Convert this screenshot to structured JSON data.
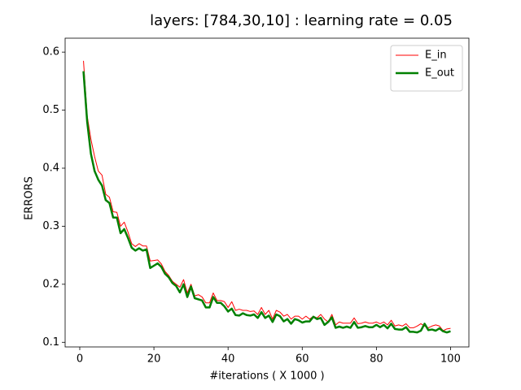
{
  "chart_data": {
    "type": "line",
    "title": "layers: [784,30,10] : learning rate = 0.05",
    "xlabel": "#iterations ( X  1000 )",
    "ylabel": "ERRORS",
    "x": [
      1,
      2,
      3,
      4,
      5,
      6,
      7,
      8,
      9,
      10,
      11,
      12,
      13,
      14,
      15,
      16,
      17,
      18,
      19,
      20,
      21,
      22,
      23,
      24,
      25,
      26,
      27,
      28,
      29,
      30,
      31,
      32,
      33,
      34,
      35,
      36,
      37,
      38,
      39,
      40,
      41,
      42,
      43,
      44,
      45,
      46,
      47,
      48,
      49,
      50,
      51,
      52,
      53,
      54,
      55,
      56,
      57,
      58,
      59,
      60,
      61,
      62,
      63,
      64,
      65,
      66,
      67,
      68,
      69,
      70,
      71,
      72,
      73,
      74,
      75,
      76,
      77,
      78,
      79,
      80,
      81,
      82,
      83,
      84,
      85,
      86,
      87,
      88,
      89,
      90,
      91,
      92,
      93,
      94,
      95,
      96,
      97,
      98,
      99,
      100
    ],
    "series": [
      {
        "name": "E_in",
        "color": "#ff0000",
        "width": 1,
        "values": [
          0.585,
          0.49,
          0.45,
          0.42,
          0.395,
          0.388,
          0.355,
          0.35,
          0.325,
          0.324,
          0.3,
          0.307,
          0.29,
          0.27,
          0.265,
          0.27,
          0.266,
          0.266,
          0.24,
          0.241,
          0.242,
          0.235,
          0.222,
          0.215,
          0.205,
          0.2,
          0.195,
          0.208,
          0.185,
          0.2,
          0.18,
          0.182,
          0.178,
          0.168,
          0.168,
          0.185,
          0.172,
          0.172,
          0.17,
          0.16,
          0.17,
          0.155,
          0.157,
          0.155,
          0.155,
          0.153,
          0.154,
          0.148,
          0.16,
          0.148,
          0.155,
          0.14,
          0.155,
          0.152,
          0.145,
          0.148,
          0.14,
          0.145,
          0.145,
          0.14,
          0.145,
          0.14,
          0.145,
          0.142,
          0.148,
          0.14,
          0.135,
          0.148,
          0.13,
          0.135,
          0.133,
          0.133,
          0.133,
          0.142,
          0.132,
          0.133,
          0.135,
          0.133,
          0.133,
          0.135,
          0.132,
          0.135,
          0.13,
          0.138,
          0.128,
          0.13,
          0.128,
          0.132,
          0.125,
          0.125,
          0.128,
          0.132,
          0.128,
          0.125,
          0.128,
          0.13,
          0.128,
          0.12,
          0.123,
          0.124
        ]
      },
      {
        "name": "E_out",
        "color": "#008000",
        "width": 2.5,
        "values": [
          0.567,
          0.48,
          0.425,
          0.395,
          0.38,
          0.37,
          0.345,
          0.34,
          0.315,
          0.315,
          0.288,
          0.295,
          0.28,
          0.263,
          0.258,
          0.262,
          0.258,
          0.26,
          0.228,
          0.232,
          0.236,
          0.23,
          0.218,
          0.212,
          0.202,
          0.197,
          0.186,
          0.2,
          0.178,
          0.196,
          0.176,
          0.174,
          0.172,
          0.16,
          0.16,
          0.178,
          0.168,
          0.168,
          0.162,
          0.153,
          0.158,
          0.147,
          0.146,
          0.15,
          0.147,
          0.146,
          0.148,
          0.142,
          0.152,
          0.142,
          0.146,
          0.135,
          0.148,
          0.145,
          0.136,
          0.14,
          0.132,
          0.14,
          0.138,
          0.134,
          0.136,
          0.136,
          0.144,
          0.14,
          0.142,
          0.13,
          0.135,
          0.143,
          0.125,
          0.127,
          0.125,
          0.127,
          0.125,
          0.135,
          0.125,
          0.126,
          0.128,
          0.126,
          0.126,
          0.13,
          0.126,
          0.13,
          0.124,
          0.132,
          0.123,
          0.122,
          0.122,
          0.126,
          0.118,
          0.118,
          0.117,
          0.12,
          0.132,
          0.121,
          0.122,
          0.12,
          0.124,
          0.119,
          0.117,
          0.119
        ]
      }
    ],
    "xlim": [
      -3.95,
      104.95
    ],
    "xticks": [
      0,
      20,
      40,
      60,
      80,
      100
    ],
    "ylim": [
      0.092,
      0.624
    ],
    "yticks": [
      0.1,
      0.2,
      0.3,
      0.4,
      0.5,
      0.6
    ],
    "grid": false,
    "legend": "upper-right"
  }
}
